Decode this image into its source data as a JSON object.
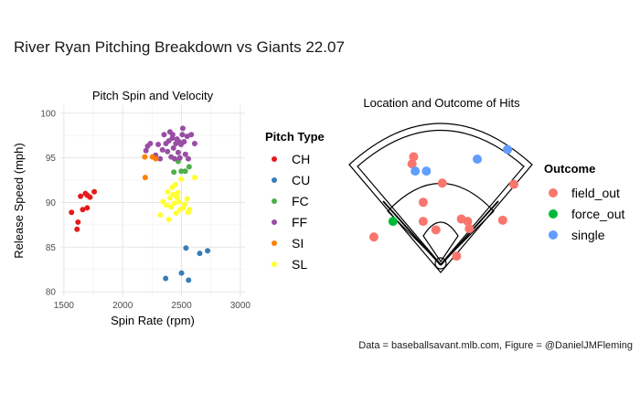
{
  "title": "River Ryan Pitching Breakdown vs Giants 22.07",
  "caption": "Data = baseballsavant.mlb.com, Figure = @DanielJMFleming",
  "colors": {
    "CH": "#e41a1c",
    "CU": "#377eb8",
    "FC": "#4daf4a",
    "FF": "#984ea3",
    "SI": "#ff7f00",
    "SL": "#ffff33",
    "field_out": "#f8766d",
    "force_out": "#00ba38",
    "single": "#619cff"
  },
  "chart_data": [
    {
      "type": "scatter",
      "title": "Pitch Spin and Velocity",
      "xlabel": "Spin Rate (rpm)",
      "ylabel": "Release Speed (mph)",
      "xlim": [
        1470,
        3040
      ],
      "ylim": [
        79.5,
        100.9
      ],
      "xticks": [
        1500,
        2000,
        2500,
        3000
      ],
      "yticks": [
        80,
        85,
        90,
        95,
        100
      ],
      "xtick_labels": [
        "1500",
        "2000",
        "2500",
        "3000"
      ],
      "ytick_labels": [
        "80",
        "85",
        "90",
        "95",
        "100"
      ],
      "legend_title": "Pitch Type",
      "legend": [
        "CH",
        "CU",
        "FC",
        "FF",
        "SI",
        "SL"
      ],
      "series": [
        {
          "name": "CH",
          "points": [
            [
              1565,
              88.9
            ],
            [
              1612,
              87.0
            ],
            [
              1620,
              87.8
            ],
            [
              1642,
              90.7
            ],
            [
              1660,
              89.2
            ],
            [
              1683,
              91.0
            ],
            [
              1698,
              89.4
            ],
            [
              1722,
              90.6
            ],
            [
              1758,
              91.2
            ],
            [
              1700,
              90.8
            ]
          ]
        },
        {
          "name": "CU",
          "points": [
            [
              2365,
              81.5
            ],
            [
              2500,
              82.1
            ],
            [
              2538,
              84.9
            ],
            [
              2560,
              81.3
            ],
            [
              2655,
              84.3
            ],
            [
              2722,
              84.6
            ]
          ]
        },
        {
          "name": "FC",
          "points": [
            [
              2435,
              93.4
            ],
            [
              2472,
              94.6
            ],
            [
              2498,
              93.5
            ],
            [
              2532,
              93.5
            ],
            [
              2565,
              94.0
            ]
          ]
        },
        {
          "name": "FF",
          "points": [
            [
              2198,
              95.8
            ],
            [
              2212,
              96.3
            ],
            [
              2235,
              96.6
            ],
            [
              2280,
              95.3
            ],
            [
              2302,
              96.5
            ],
            [
              2318,
              94.9
            ],
            [
              2338,
              95.9
            ],
            [
              2352,
              97.6
            ],
            [
              2368,
              96.6
            ],
            [
              2381,
              95.7
            ],
            [
              2392,
              96.9
            ],
            [
              2402,
              97.9
            ],
            [
              2412,
              95.1
            ],
            [
              2422,
              97.2
            ],
            [
              2432,
              96.1
            ],
            [
              2442,
              94.9
            ],
            [
              2452,
              96.6
            ],
            [
              2462,
              97.1
            ],
            [
              2472,
              95.6
            ],
            [
              2486,
              95.0
            ],
            [
              2496,
              96.5
            ],
            [
              2507,
              97.6
            ],
            [
              2511,
              98.3
            ],
            [
              2522,
              96.8
            ],
            [
              2533,
              95.4
            ],
            [
              2548,
              97.4
            ],
            [
              2558,
              94.9
            ],
            [
              2583,
              97.6
            ],
            [
              2612,
              96.6
            ],
            [
              2425,
              97.6
            ],
            [
              2478,
              96.8
            ]
          ]
        },
        {
          "name": "SI",
          "points": [
            [
              2188,
              95.1
            ],
            [
              2192,
              92.8
            ],
            [
              2253,
              95.1
            ],
            [
              2282,
              94.9
            ]
          ]
        },
        {
          "name": "SL",
          "points": [
            [
              2320,
              88.6
            ],
            [
              2342,
              90.1
            ],
            [
              2372,
              89.7
            ],
            [
              2383,
              91.2
            ],
            [
              2392,
              88.1
            ],
            [
              2402,
              90.5
            ],
            [
              2412,
              89.5
            ],
            [
              2422,
              91.7
            ],
            [
              2428,
              90.9
            ],
            [
              2438,
              89.9
            ],
            [
              2448,
              92.0
            ],
            [
              2455,
              88.8
            ],
            [
              2468,
              91.1
            ],
            [
              2478,
              90.1
            ],
            [
              2488,
              89.2
            ],
            [
              2498,
              92.6
            ],
            [
              2512,
              89.4
            ],
            [
              2528,
              89.8
            ],
            [
              2548,
              90.4
            ],
            [
              2558,
              88.9
            ],
            [
              2568,
              89.2
            ],
            [
              2612,
              92.8
            ],
            [
              2462,
              90.6
            ]
          ]
        }
      ]
    },
    {
      "type": "scatter",
      "title": "Location and Outcome of Hits",
      "note": "Hit locations in spray-chart field coordinates (x: 0 left to 100 right, y: 0 home plate to 100 deep center)",
      "xlim": [
        0,
        100
      ],
      "ylim": [
        0,
        100
      ],
      "legend_title": "Outcome",
      "legend": [
        "field_out",
        "force_out",
        "single"
      ],
      "series": [
        {
          "name": "field_out",
          "points": [
            [
              33,
              89
            ],
            [
              32,
              83
            ],
            [
              51,
              67
            ],
            [
              39,
              51
            ],
            [
              96,
              66
            ],
            [
              39,
              35
            ],
            [
              63,
              37
            ],
            [
              67,
              35
            ],
            [
              89,
              36
            ],
            [
              8,
              22
            ],
            [
              47,
              28
            ],
            [
              68,
              29
            ],
            [
              60,
              6
            ]
          ]
        },
        {
          "name": "force_out",
          "points": [
            [
              20,
              35
            ]
          ]
        },
        {
          "name": "single",
          "points": [
            [
              34,
              77
            ],
            [
              41,
              77
            ],
            [
              73,
              87
            ],
            [
              92,
              95
            ]
          ]
        }
      ]
    }
  ]
}
